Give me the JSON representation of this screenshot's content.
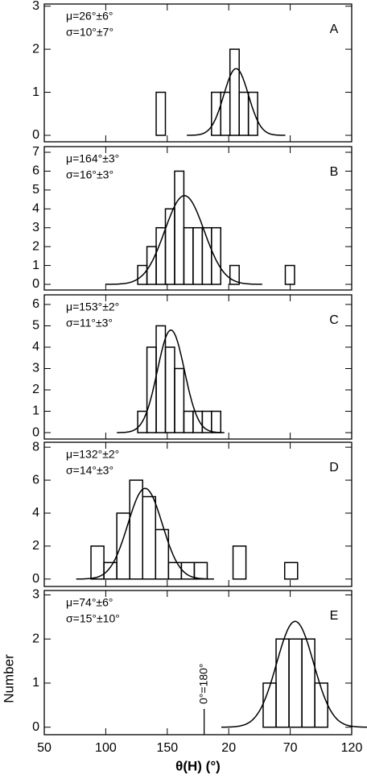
{
  "chart_data": [
    {
      "type": "histogram",
      "annotations": [
        "μ=26°±6°",
        "σ=10°±7°"
      ],
      "panel": "A",
      "bins": [
        141,
        148.5,
        156,
        163.5,
        171,
        178.5,
        186,
        193.5,
        201,
        208.5,
        216,
        223.5
      ],
      "counts": [
        1,
        0,
        0,
        0,
        0,
        0,
        1,
        1,
        2,
        1,
        1
      ],
      "fit": {
        "mean": 206,
        "sigma": 10,
        "peak": 1.55
      },
      "xlim": [
        50,
        300
      ],
      "xticks": [
        50,
        100,
        150,
        {
          "value": 200,
          "label": "20"
        },
        {
          "value": 250,
          "label": "70"
        },
        {
          "value": 300,
          "label": "120"
        }
      ],
      "ylim": [
        -0.15,
        3.05
      ],
      "yticks": [
        0,
        1,
        2,
        3
      ]
    },
    {
      "type": "histogram",
      "annotations": [
        "μ=164°±3°",
        "σ=16°±3°"
      ],
      "panel": "B",
      "bins": [
        126,
        133.5,
        141,
        148.5,
        156,
        163.5,
        171,
        178.5,
        186,
        193.5,
        201,
        208.5,
        216,
        223.5,
        231,
        238.5,
        246,
        253.5
      ],
      "counts": [
        1,
        2,
        3,
        4,
        6,
        3,
        3,
        3,
        3,
        0,
        1,
        0,
        0,
        0,
        0,
        0,
        1
      ],
      "fit": {
        "mean": 164,
        "sigma": 16,
        "peak": 4.7
      },
      "xlim": [
        50,
        300
      ],
      "xticks": [
        50,
        100,
        150,
        {
          "value": 200,
          "label": "20"
        },
        {
          "value": 250,
          "label": "70"
        },
        {
          "value": 300,
          "label": "120"
        }
      ],
      "ylim": [
        -0.3,
        7.3
      ],
      "yticks": [
        0,
        1,
        2,
        3,
        4,
        5,
        6,
        7
      ]
    },
    {
      "type": "histogram",
      "annotations": [
        "μ=153°±2°",
        "σ=11°±3°"
      ],
      "panel": "C",
      "bins": [
        126,
        133.5,
        141,
        148.5,
        156,
        163.5,
        171,
        178.5,
        186,
        193.5
      ],
      "counts": [
        1,
        4,
        5,
        4,
        3,
        1,
        1,
        1,
        1
      ],
      "fit": {
        "mean": 153,
        "sigma": 11,
        "peak": 4.8
      },
      "xlim": [
        50,
        300
      ],
      "xticks": [
        50,
        100,
        150,
        {
          "value": 200,
          "label": "20"
        },
        {
          "value": 250,
          "label": "70"
        },
        {
          "value": 300,
          "label": "120"
        }
      ],
      "ylim": [
        -0.3,
        6.45
      ],
      "yticks": [
        0,
        1,
        2,
        3,
        4,
        5,
        6
      ]
    },
    {
      "type": "histogram",
      "annotations": [
        "μ=132°±2°",
        "σ=14°±3°"
      ],
      "panel": "D",
      "bins": [
        88,
        98.5,
        109,
        119.5,
        130,
        140.5,
        151,
        161.5,
        172,
        182.5,
        193,
        203.5,
        214,
        224.5,
        235,
        245.5,
        256
      ],
      "counts": [
        2,
        1,
        4,
        6,
        5,
        3,
        1,
        1,
        1,
        0,
        0,
        2,
        0,
        0,
        0,
        1
      ],
      "fit": {
        "mean": 132,
        "sigma": 14,
        "peak": 5.5
      },
      "xlim": [
        50,
        300
      ],
      "xticks": [
        50,
        100,
        150,
        {
          "value": 200,
          "label": "20"
        },
        {
          "value": 250,
          "label": "70"
        },
        {
          "value": 300,
          "label": "120"
        }
      ],
      "ylim": [
        -0.45,
        8.3
      ],
      "yticks": [
        0,
        2,
        4,
        6,
        8
      ]
    },
    {
      "type": "histogram",
      "annotations": [
        "μ=74°±6°",
        "σ=15°±10°"
      ],
      "panel": "E",
      "bins": [
        228,
        238.5,
        249,
        259.5,
        270,
        280.5
      ],
      "counts": [
        1,
        2,
        2,
        2,
        1
      ],
      "fit": {
        "mean": 254,
        "sigma": 15,
        "peak": 2.4
      },
      "marker": {
        "value": 180,
        "label": "0°=180°"
      },
      "xlim": [
        50,
        300
      ],
      "xticks": [
        50,
        100,
        150,
        {
          "value": 200,
          "label": "20"
        },
        {
          "value": 250,
          "label": "70"
        },
        {
          "value": 300,
          "label": "120"
        }
      ],
      "ylim": [
        -0.17,
        3.1
      ],
      "yticks": [
        0,
        1,
        2,
        3
      ],
      "xlabel": "θ(H) (°)",
      "ylabel": "Number"
    }
  ]
}
